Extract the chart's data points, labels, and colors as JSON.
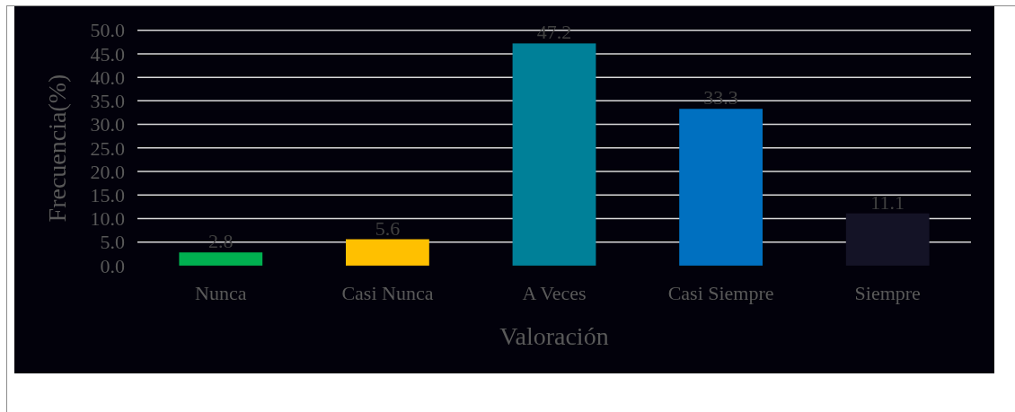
{
  "chart_data": {
    "type": "bar",
    "xlabel": "Valoración",
    "ylabel": "Frecuencia(%)",
    "categories": [
      "Nunca",
      "Casi Nunca",
      "A Veces",
      "Casi Siempre",
      "Siempre"
    ],
    "values": [
      2.8,
      5.6,
      47.2,
      33.3,
      11.1
    ],
    "colors": [
      "#00b050",
      "#ffc000",
      "#008098",
      "#0070c0",
      "#141326"
    ],
    "ylim": [
      0,
      50
    ],
    "yticks": [
      {
        "value": 0,
        "label": "0.0"
      },
      {
        "value": 5,
        "label": "5.0"
      },
      {
        "value": 10,
        "label": "10.0"
      },
      {
        "value": 15,
        "label": "15.0"
      },
      {
        "value": 20,
        "label": "20.0"
      },
      {
        "value": 25,
        "label": "25.0"
      },
      {
        "value": 30,
        "label": "30.0"
      },
      {
        "value": 35,
        "label": "35.0"
      },
      {
        "value": 40,
        "label": "40.0"
      },
      {
        "value": 45,
        "label": "45.0"
      },
      {
        "value": 50,
        "label": "50.0"
      }
    ],
    "grid": "y",
    "data_labels": true
  }
}
